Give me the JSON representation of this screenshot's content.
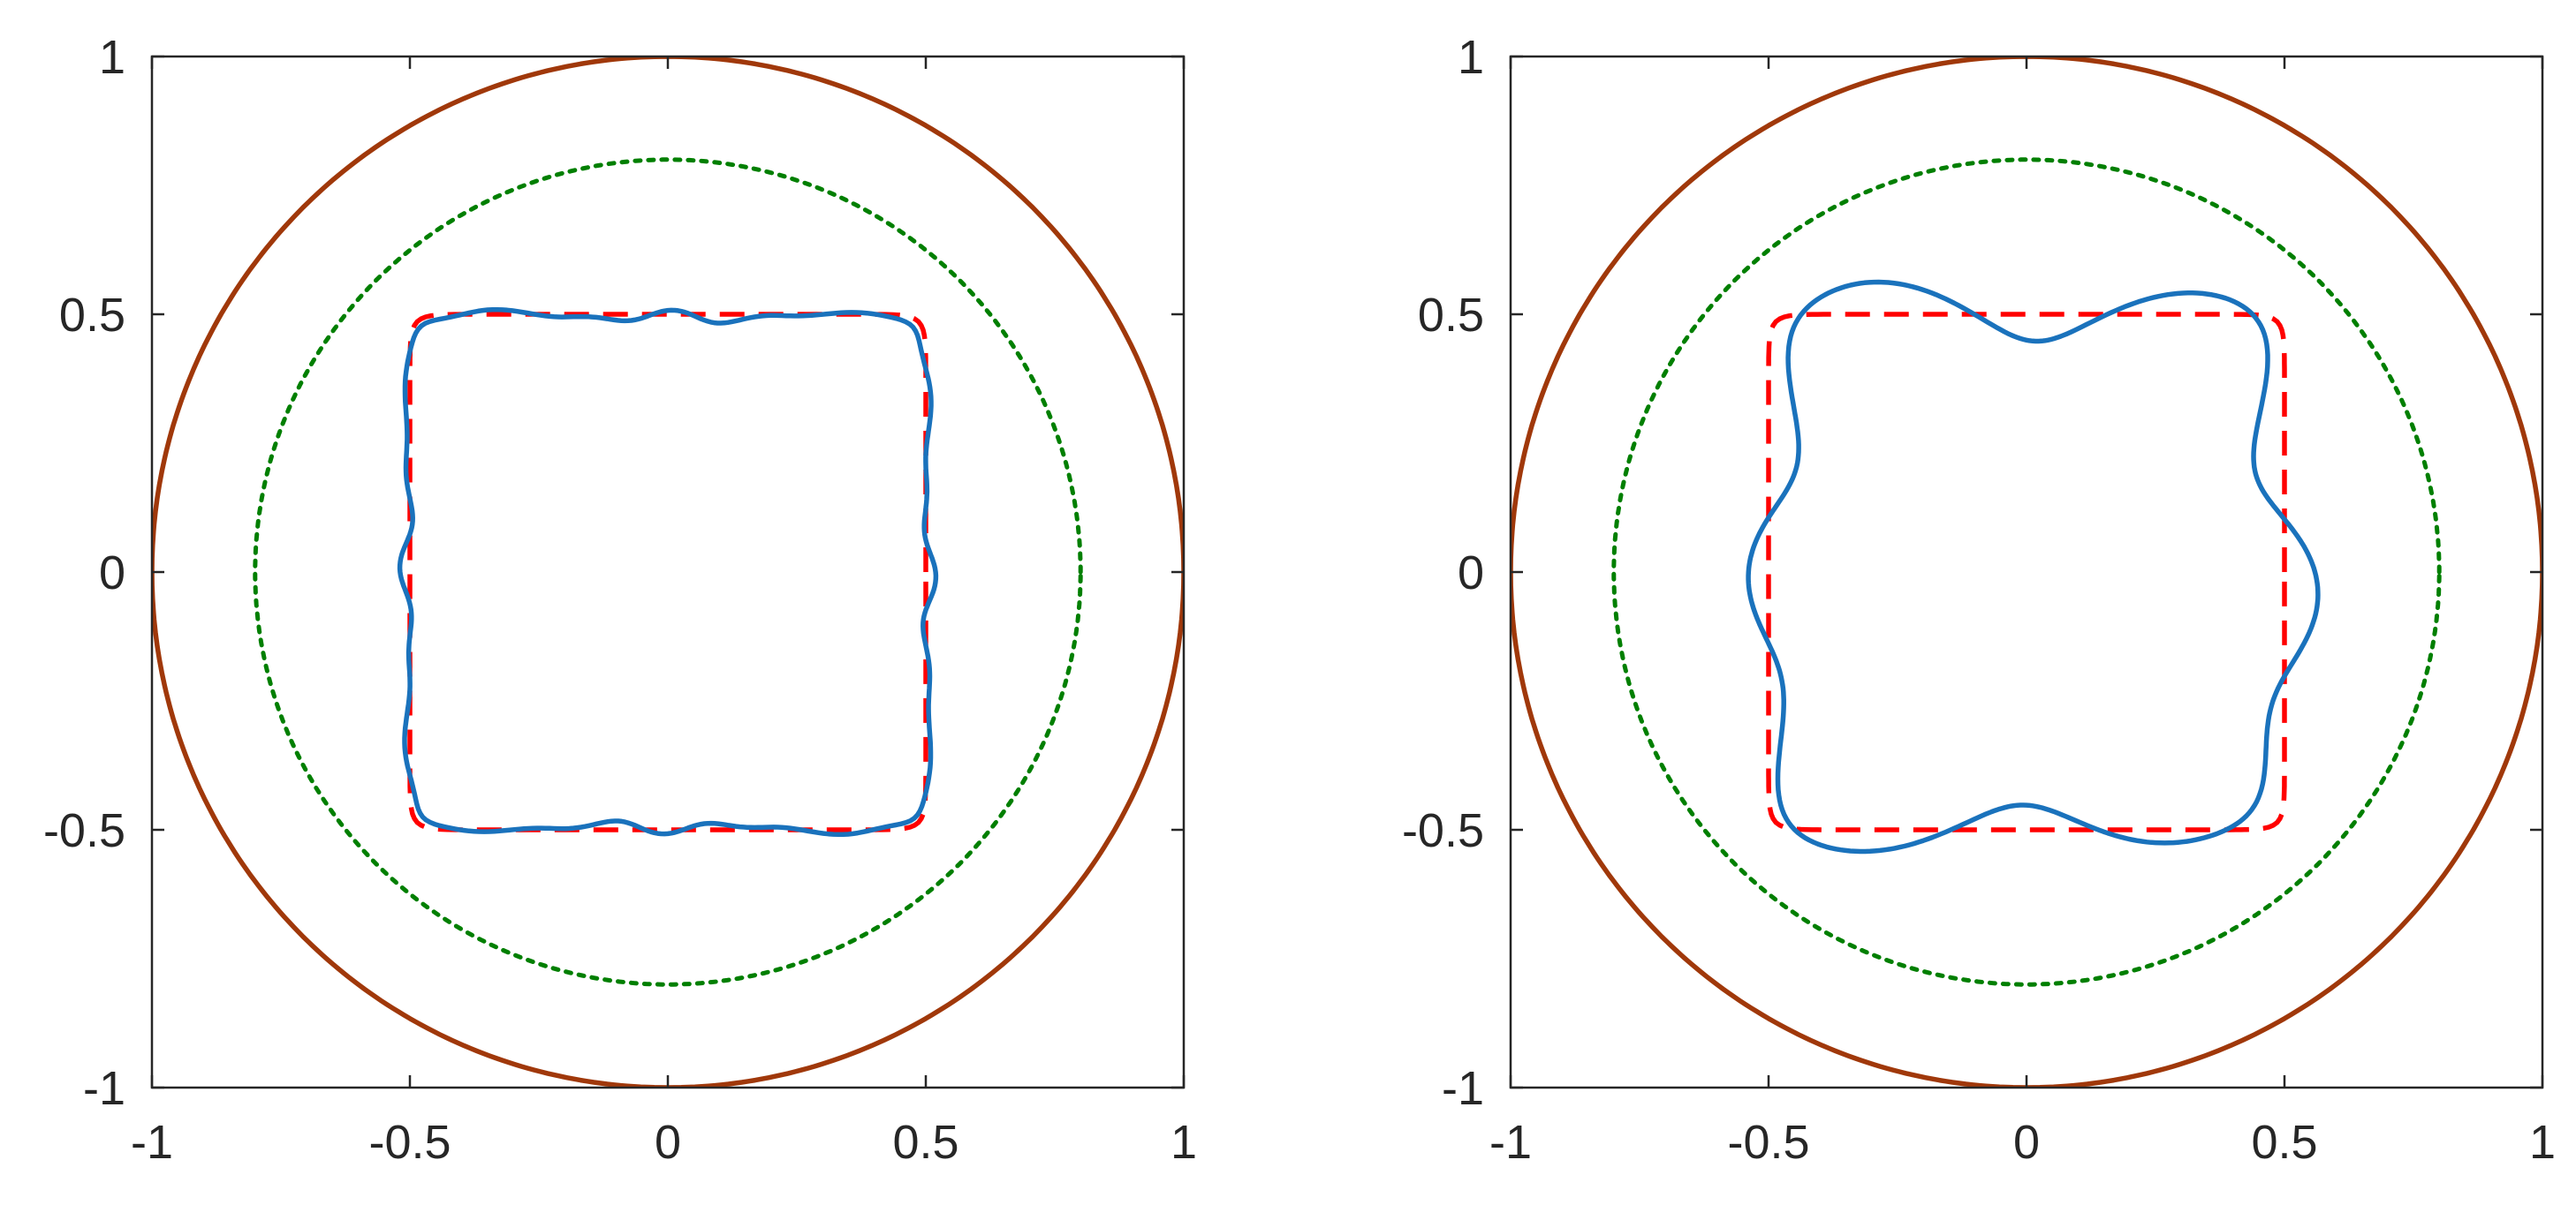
{
  "chart_data": [
    {
      "type": "line",
      "title": "",
      "xlabel": "",
      "ylabel": "",
      "xlim": [
        -1,
        1
      ],
      "ylim": [
        -1,
        1
      ],
      "xticks": [
        "-1",
        "-0.5",
        "0",
        "0.5",
        "1"
      ],
      "yticks": [
        "1",
        "0.5",
        "0",
        "-0.5",
        "-1"
      ],
      "grid": false,
      "legend": "none",
      "series": [
        {
          "style": "solid",
          "color": "#a0380a",
          "shape": "circle",
          "params": {
            "cx": 0,
            "cy": 0,
            "r": 1.0
          }
        },
        {
          "style": "dotted",
          "color": "#007f00",
          "shape": "circle",
          "params": {
            "cx": 0,
            "cy": 0,
            "r": 0.8
          }
        },
        {
          "style": "dashed",
          "color": "#ff0000",
          "shape": "rounded-square",
          "params": {
            "half_width": 0.5,
            "power": 24
          }
        },
        {
          "style": "solid",
          "color": "#1a72bc",
          "shape": "perturbed-square",
          "params": {
            "half_width": 0.5,
            "power": 24,
            "modes": [
              {
                "k": 2,
                "a": 0.006,
                "p": 0.3
              },
              {
                "k": 12,
                "a": 0.008,
                "p": 0.0
              },
              {
                "k": 20,
                "a": 0.006,
                "p": 0.5
              }
            ]
          }
        }
      ]
    },
    {
      "type": "line",
      "title": "",
      "xlabel": "",
      "ylabel": "",
      "xlim": [
        -1,
        1
      ],
      "ylim": [
        -1,
        1
      ],
      "xticks": [
        "-1",
        "-0.5",
        "0",
        "0.5",
        "1"
      ],
      "yticks": [
        "1",
        "0.5",
        "0",
        "-0.5",
        "-1"
      ],
      "grid": false,
      "legend": "none",
      "series": [
        {
          "style": "solid",
          "color": "#a0380a",
          "shape": "circle",
          "params": {
            "cx": 0,
            "cy": 0,
            "r": 1.0
          }
        },
        {
          "style": "dotted",
          "color": "#007f00",
          "shape": "circle",
          "params": {
            "cx": 0,
            "cy": 0,
            "r": 0.8
          }
        },
        {
          "style": "dashed",
          "color": "#ff0000",
          "shape": "rounded-square",
          "params": {
            "half_width": 0.5,
            "power": 24
          }
        },
        {
          "style": "solid",
          "color": "#1a72bc",
          "shape": "perturbed-square",
          "params": {
            "half_width": 0.5,
            "power": 8,
            "modes": [
              {
                "k": 6,
                "a": 0.05,
                "p": 0.2
              },
              {
                "k": 3,
                "a": 0.015,
                "p": 0.8
              },
              {
                "k": 5,
                "a": 0.012,
                "p": 1.6
              }
            ]
          }
        }
      ]
    }
  ]
}
